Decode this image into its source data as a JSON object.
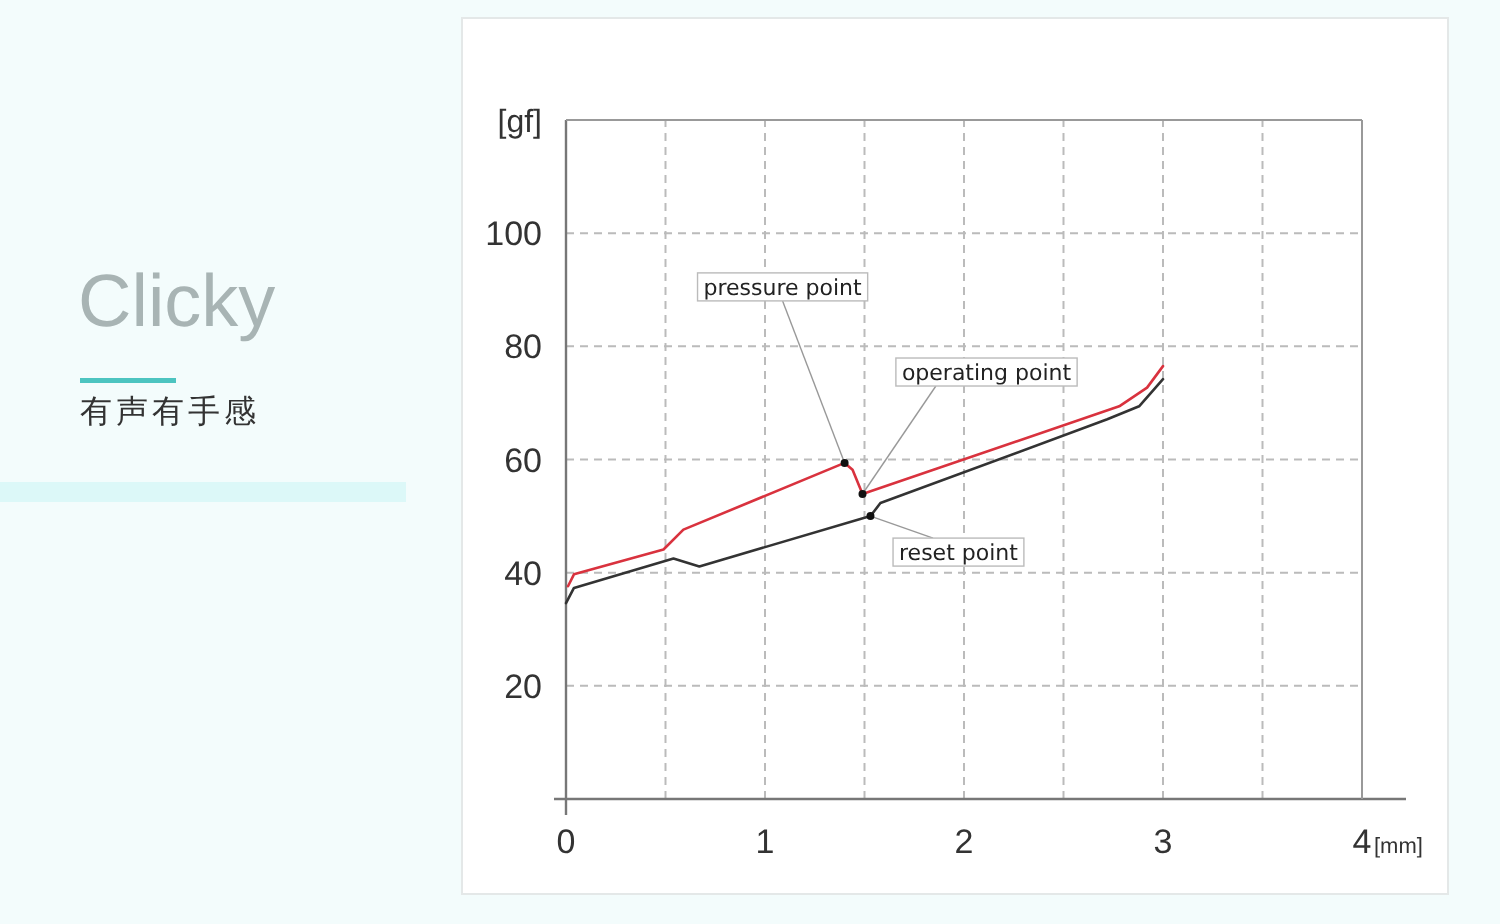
{
  "chart_data": {
    "type": "line",
    "title": "Clicky",
    "subtitle": "有声有手感",
    "xlabel": "[mm]",
    "ylabel": "[gf]",
    "xlim": [
      0,
      4
    ],
    "ylim": [
      0,
      120
    ],
    "xticks": [
      0,
      {
        "value": 0.5,
        "label": null
      },
      1,
      {
        "value": 1.5,
        "label": null
      },
      2,
      {
        "value": 2.5,
        "label": null
      },
      3,
      {
        "value": 3.5,
        "label": null
      },
      4
    ],
    "yticks": [
      20,
      40,
      60,
      80,
      100
    ],
    "grid": true,
    "series": [
      {
        "color": "#d9323e",
        "x": [
          0.01,
          0.04,
          0.49,
          0.59,
          1.4,
          1.44,
          1.49,
          2.78,
          2.92,
          3.0
        ],
        "values": [
          37.6,
          39.7,
          44.1,
          47.6,
          59.4,
          58.2,
          53.9,
          69.4,
          72.7,
          76.5
        ]
      },
      {
        "color": "#333333",
        "x": [
          0.0,
          0.04,
          0.54,
          0.67,
          1.53,
          1.58,
          2.72,
          2.88,
          3.0
        ],
        "values": [
          34.6,
          37.3,
          42.5,
          41.1,
          50.0,
          52.3,
          67.1,
          69.4,
          74.2
        ]
      }
    ],
    "annotations": [
      {
        "text": "pressure point",
        "x": 1.4,
        "y": 59.4
      },
      {
        "text": "operating point",
        "x": 1.49,
        "y": 53.9
      },
      {
        "text": "reset point",
        "x": 1.53,
        "y": 50.0
      }
    ]
  }
}
